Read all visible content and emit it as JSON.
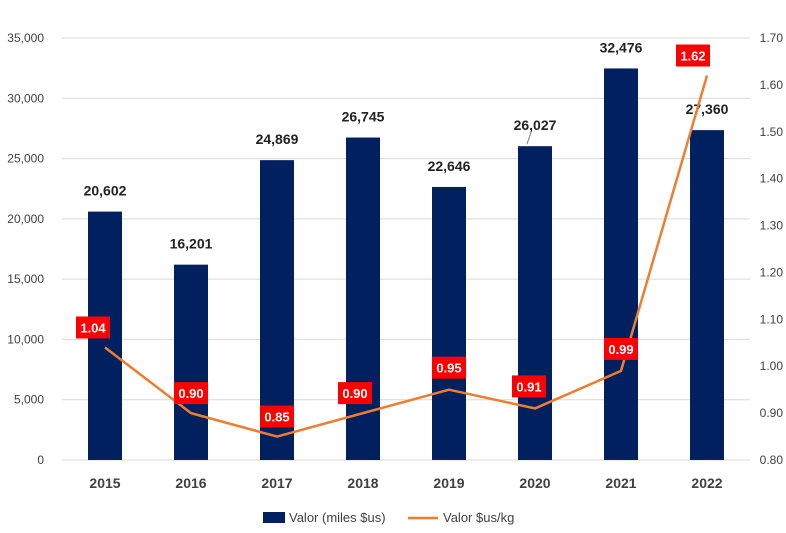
{
  "chart_data": {
    "type": "bar+line",
    "categories": [
      "2015",
      "2016",
      "2017",
      "2018",
      "2019",
      "2020",
      "2021",
      "2022"
    ],
    "series": [
      {
        "name": "Valor (miles $us)",
        "type": "bar",
        "axis": "left",
        "values": [
          20602,
          16201,
          24869,
          26745,
          22646,
          26027,
          32476,
          27360
        ],
        "labels": [
          "20,602",
          "16,201",
          "24,869",
          "26,745",
          "22,646",
          "26,027",
          "32,476",
          "27,360"
        ],
        "color": "#002060"
      },
      {
        "name": "Valor $us/kg",
        "type": "line",
        "axis": "right",
        "values": [
          1.04,
          0.9,
          0.85,
          0.9,
          0.95,
          0.91,
          0.99,
          1.62
        ],
        "labels": [
          "1.04",
          "0.90",
          "0.85",
          "0.90",
          "0.95",
          "0.91",
          "0.99",
          "1.62"
        ],
        "color": "#ED7D31",
        "label_box_color": "#FF0000"
      }
    ],
    "y_left": {
      "min": 0,
      "max": 35000,
      "ticks": [
        0,
        5000,
        10000,
        15000,
        20000,
        25000,
        30000,
        35000
      ],
      "tick_labels": [
        "0",
        "5,000",
        "10,000",
        "15,000",
        "20,000",
        "25,000",
        "30,000",
        "35,000"
      ]
    },
    "y_right": {
      "min": 0.8,
      "max": 1.7,
      "ticks": [
        0.8,
        0.9,
        1.0,
        1.1,
        1.2,
        1.3,
        1.4,
        1.5,
        1.6,
        1.7
      ],
      "tick_labels": [
        "0.80",
        "0.90",
        "1.00",
        "1.10",
        "1.20",
        "1.30",
        "1.40",
        "1.50",
        "1.60",
        "1.70"
      ]
    },
    "grid": "horizontal",
    "legend_position": "bottom-center",
    "title": ""
  }
}
